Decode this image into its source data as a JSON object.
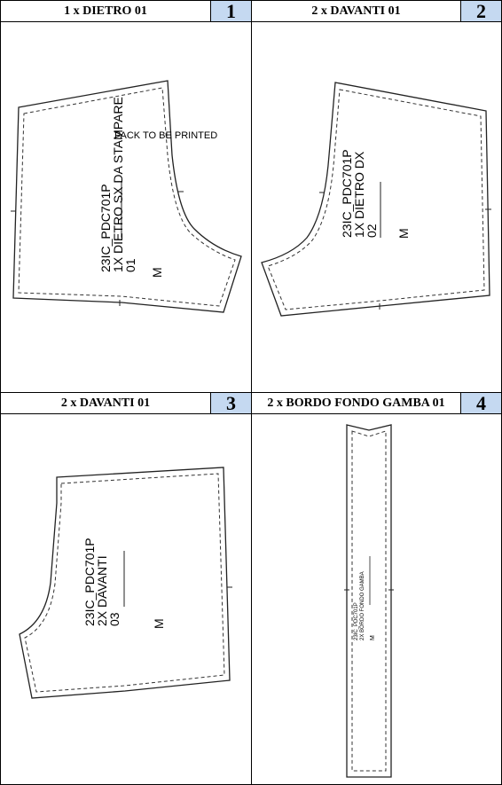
{
  "panels": [
    {
      "title": "1 x DIETRO 01",
      "number": "1",
      "label_lines": [
        "23IC_PDC701P",
        "1X DIETRO SX DA STAMPARE",
        "01"
      ],
      "size": "M",
      "note": "PACK TO BE PRINTED"
    },
    {
      "title": "2 x DAVANTI 01",
      "number": "2",
      "label_lines": [
        "23IC_PDC701P",
        "1X DIETRO DX",
        "02"
      ],
      "size": "M"
    },
    {
      "title": "2 x DAVANTI 01",
      "number": "3",
      "label_lines": [
        "23IC_PDC701P",
        "2X DAVANTI",
        "03"
      ],
      "size": "M"
    },
    {
      "title": "2 x BORDO FONDO GAMBA 01",
      "number": "4",
      "label_lines": [
        "23IC_PDC701P",
        "2X BORDO FONDO GAMBA"
      ],
      "size": "M"
    }
  ]
}
